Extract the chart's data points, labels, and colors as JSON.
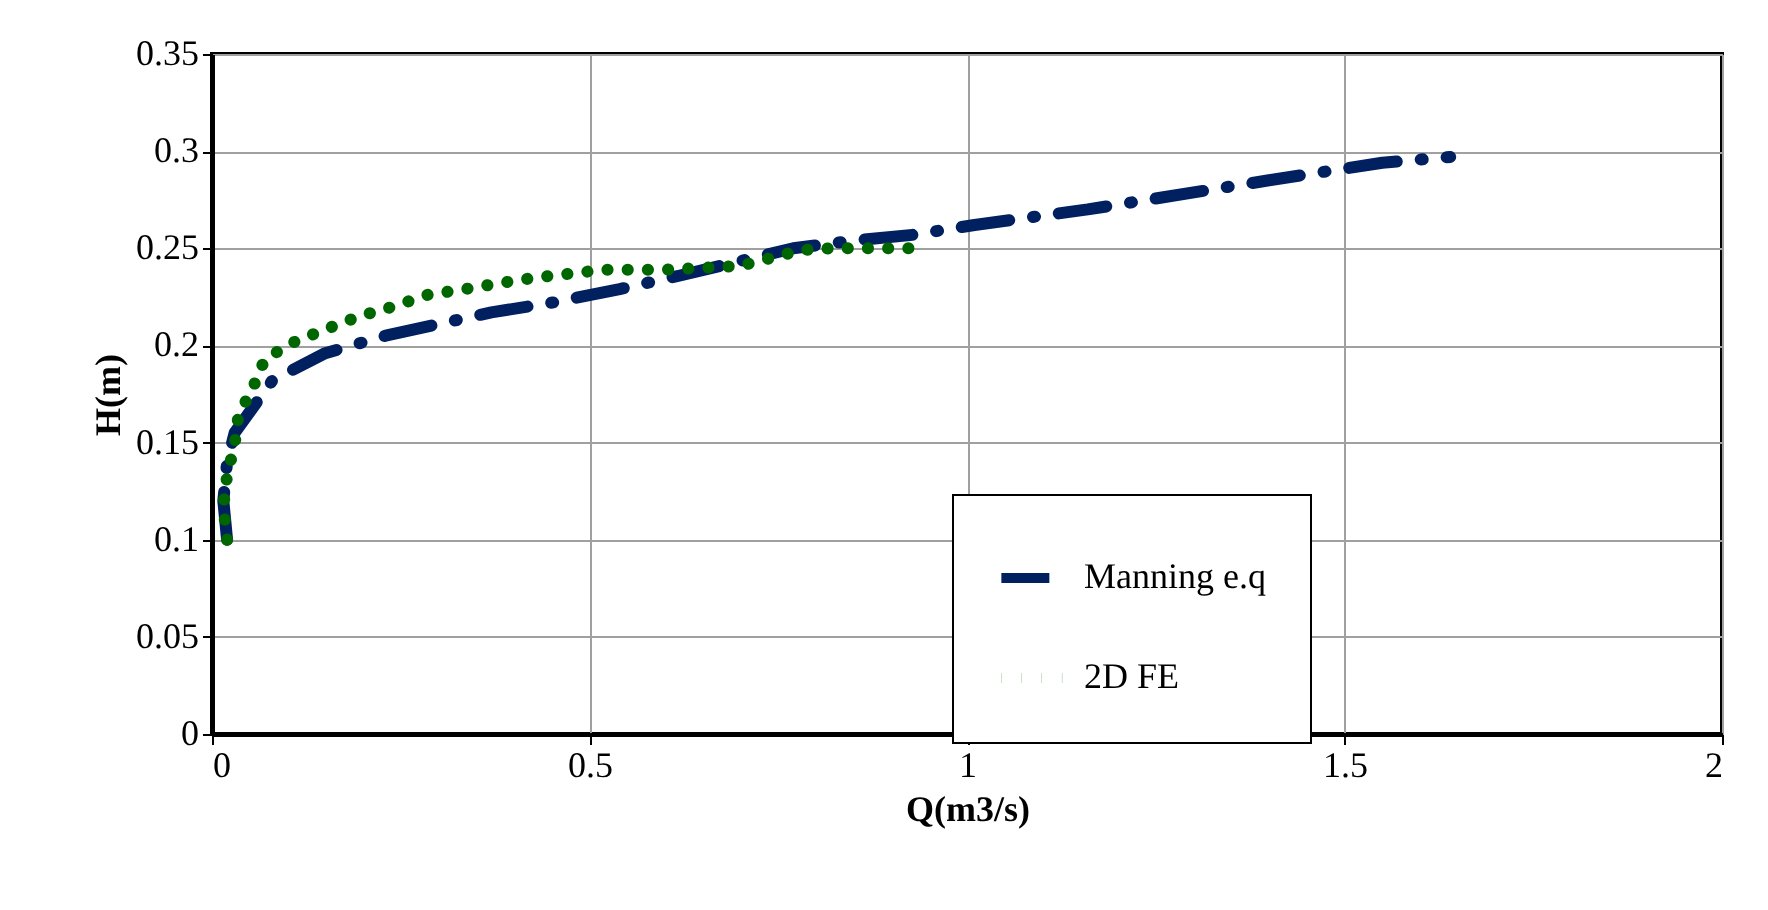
{
  "chart_data": {
    "type": "line",
    "xlabel": "Q(m3/s)",
    "ylabel": "H(m)",
    "xlim": [
      0,
      2
    ],
    "ylim": [
      0,
      0.35
    ],
    "xticks": [
      0,
      0.5,
      1,
      1.5,
      2
    ],
    "yticks": [
      0,
      0.05,
      0.1,
      0.15,
      0.2,
      0.25,
      0.3,
      0.35
    ],
    "grid": true,
    "legend": "bottom right",
    "marker": "none",
    "series": [
      {
        "name": "Manning e.q",
        "color": "#002060",
        "line_style": "dashed",
        "x": [
          0.02,
          0.015,
          0.02,
          0.03,
          0.08,
          0.15,
          0.23,
          0.37,
          0.45,
          0.54,
          0.62,
          0.77,
          0.85,
          0.93,
          1.01,
          1.16,
          1.24,
          1.32,
          1.4,
          1.55,
          1.64
        ],
        "values": [
          0.1,
          0.12,
          0.14,
          0.155,
          0.182,
          0.196,
          0.205,
          0.217,
          0.222,
          0.229,
          0.236,
          0.25,
          0.254,
          0.257,
          0.262,
          0.27,
          0.275,
          0.28,
          0.285,
          0.294,
          0.297
        ]
      },
      {
        "name": "2D FE",
        "color": "#006600",
        "line_style": "dotted",
        "x": [
          0.02,
          0.015,
          0.02,
          0.03,
          0.035,
          0.055,
          0.07,
          0.11,
          0.155,
          0.195,
          0.24,
          0.285,
          0.335,
          0.38,
          0.43,
          0.475,
          0.52,
          0.56,
          0.6,
          0.655,
          0.7,
          0.74,
          0.78,
          0.82,
          0.86,
          0.9,
          0.94
        ],
        "values": [
          0.1,
          0.117,
          0.133,
          0.149,
          0.164,
          0.179,
          0.193,
          0.202,
          0.209,
          0.215,
          0.22,
          0.226,
          0.229,
          0.232,
          0.235,
          0.237,
          0.239,
          0.239,
          0.239,
          0.24,
          0.241,
          0.245,
          0.249,
          0.25,
          0.25,
          0.25,
          0.25
        ]
      }
    ]
  }
}
